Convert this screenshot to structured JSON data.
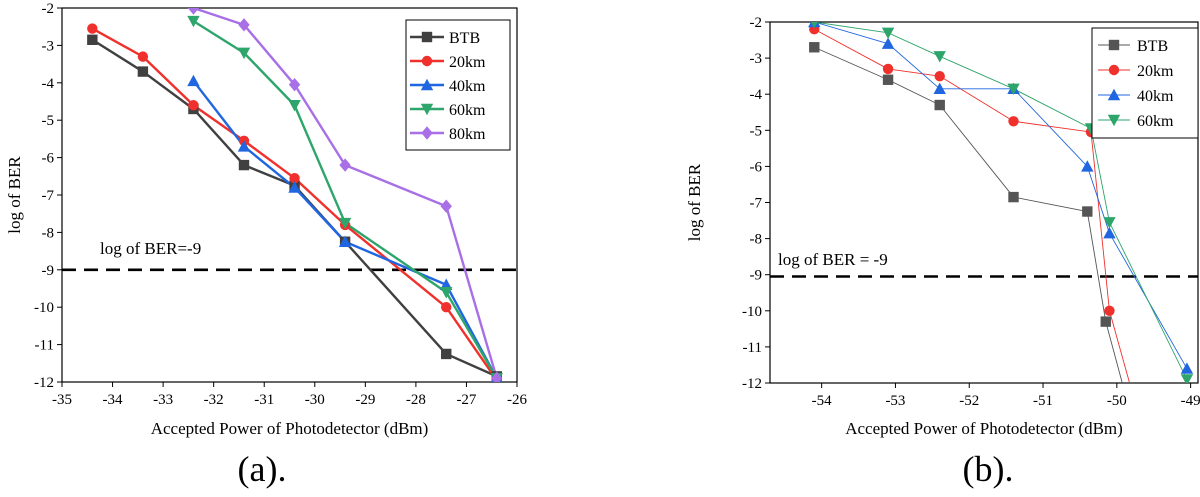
{
  "figure": {
    "panels": [
      "a",
      "b"
    ]
  },
  "chart_data": [
    {
      "type": "line",
      "caption": "(a).",
      "xlabel": "Accepted Power of Photodetector (dBm)",
      "ylabel": "log of BER",
      "xlim": [
        -35,
        -26
      ],
      "ylim": [
        -12,
        -2
      ],
      "xticks": [
        -35,
        -34,
        -33,
        -32,
        -31,
        -30,
        -29,
        -28,
        -27,
        -26
      ],
      "yticks": [
        -2,
        -3,
        -4,
        -5,
        -6,
        -7,
        -8,
        -9,
        -10,
        -11,
        -12
      ],
      "grid": false,
      "legend_position": "top-right",
      "threshold": {
        "y": -9,
        "label": "log of BER=-9"
      },
      "series": [
        {
          "name": "BTB",
          "color": "#404040",
          "marker": "square",
          "x": [
            -34.4,
            -33.4,
            -32.4,
            -31.4,
            -30.4,
            -29.4,
            -27.4,
            -26.4
          ],
          "y": [
            -2.85,
            -3.7,
            -4.7,
            -6.2,
            -6.75,
            -8.25,
            -11.25,
            -11.85
          ]
        },
        {
          "name": "20km",
          "color": "#f0302c",
          "marker": "circle",
          "x": [
            -34.4,
            -33.4,
            -32.4,
            -31.4,
            -30.4,
            -29.4,
            -27.4,
            -26.4
          ],
          "y": [
            -2.55,
            -3.3,
            -4.6,
            -5.55,
            -6.55,
            -7.8,
            -10.0,
            -11.95
          ]
        },
        {
          "name": "40km",
          "color": "#2066e0",
          "marker": "triangle-up",
          "x": [
            -32.4,
            -31.4,
            -30.4,
            -29.4,
            -27.4,
            -26.4
          ],
          "y": [
            -3.95,
            -5.7,
            -6.8,
            -8.25,
            -9.4,
            -11.9
          ]
        },
        {
          "name": "60km",
          "color": "#2ea56b",
          "marker": "triangle-down",
          "x": [
            -32.4,
            -31.4,
            -30.4,
            -29.4,
            -27.4,
            -26.4
          ],
          "y": [
            -2.35,
            -3.2,
            -4.6,
            -7.75,
            -9.6,
            -11.9
          ]
        },
        {
          "name": "80km",
          "color": "#a86fe6",
          "marker": "diamond",
          "x": [
            -32.4,
            -31.4,
            -30.4,
            -29.4,
            -27.4,
            -26.4
          ],
          "y": [
            -2.0,
            -2.45,
            -4.05,
            -6.2,
            -7.3,
            -11.9
          ]
        }
      ]
    },
    {
      "type": "line",
      "caption": "(b).",
      "xlabel": "Accepted Power of Photodetector (dBm)",
      "ylabel": "log of BER",
      "xlim": [
        -54.7,
        -48.9
      ],
      "ylim": [
        -12,
        -2
      ],
      "xticks": [
        -54,
        -53,
        -52,
        -51,
        -50,
        -49
      ],
      "yticks": [
        -2,
        -3,
        -4,
        -5,
        -6,
        -7,
        -8,
        -9,
        -10,
        -11,
        -12
      ],
      "grid": false,
      "legend_position": "top-right",
      "threshold": {
        "y": -9.05,
        "label": "log of BER = -9"
      },
      "series": [
        {
          "name": "BTB",
          "color": "#555555",
          "marker": "square",
          "x": [
            -54.1,
            -53.1,
            -52.4,
            -51.4,
            -50.4,
            -50.15,
            -49.9
          ],
          "y": [
            -2.7,
            -3.6,
            -4.3,
            -6.85,
            -7.25,
            -10.3,
            -12.2
          ]
        },
        {
          "name": "20km",
          "color": "#f0302c",
          "marker": "circle",
          "x": [
            -54.1,
            -53.1,
            -52.4,
            -51.4,
            -50.35,
            -50.1,
            -49.8
          ],
          "y": [
            -2.2,
            -3.3,
            -3.5,
            -4.75,
            -5.05,
            -10.0,
            -12.2
          ]
        },
        {
          "name": "40km",
          "color": "#2066e0",
          "marker": "triangle-up",
          "x": [
            -54.1,
            -53.1,
            -52.4,
            -51.4,
            -50.4,
            -50.1,
            -49.05
          ],
          "y": [
            -2.0,
            -2.6,
            -3.85,
            -3.85,
            -6.0,
            -7.85,
            -11.6
          ]
        },
        {
          "name": "60km",
          "color": "#2ea56b",
          "marker": "triangle-down",
          "x": [
            -54.1,
            -53.1,
            -52.4,
            -51.4,
            -50.35,
            -50.1,
            -49.05
          ],
          "y": [
            -2.0,
            -2.3,
            -2.95,
            -3.85,
            -4.95,
            -7.55,
            -11.9
          ]
        }
      ]
    }
  ]
}
